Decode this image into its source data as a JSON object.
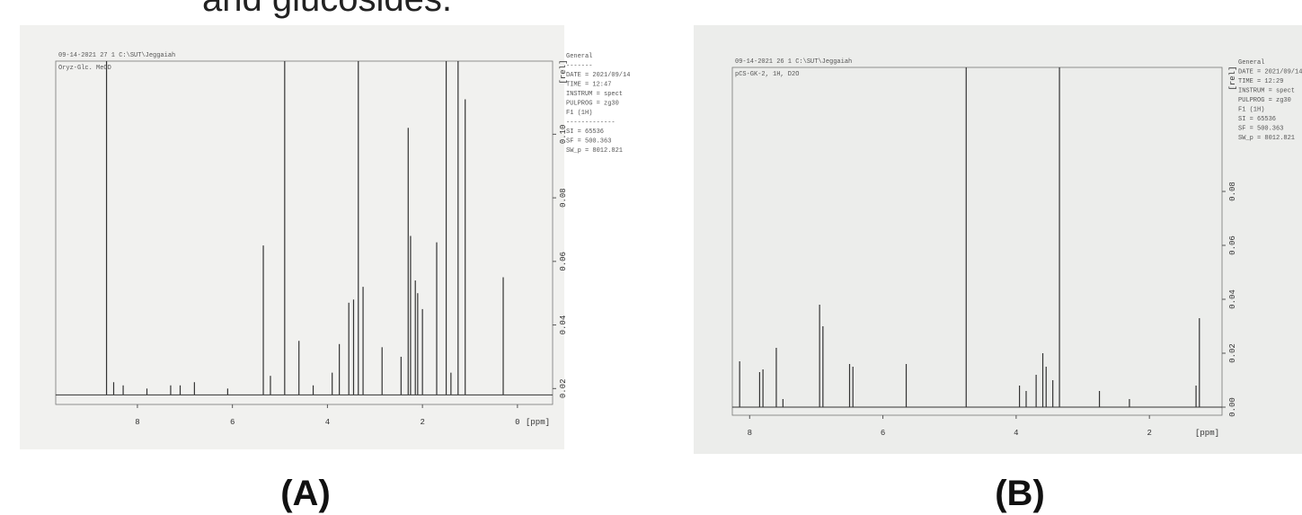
{
  "heading": "and glucosides.",
  "chart_data": [
    {
      "type": "stem",
      "panel_label": "(A)",
      "header": "09-14-2021  27  1  C:\\SUT\\Jeggaiah",
      "sample": "Oryz-Glc. MeOD",
      "params": [
        "General",
        "-------",
        "DATE = 2021/09/14",
        "TIME = 12:47",
        "INSTRUM = spect",
        "PULPROG = zg30",
        "F1 (1H)",
        "-------------",
        "SI = 65536",
        "SF = 500.363",
        "SW_p = 8012.821"
      ],
      "x_unit": "[ppm]",
      "y_unit": "[rel]",
      "color": "#333333",
      "baseline": 0.018,
      "x": [
        8.65,
        8.5,
        8.3,
        7.8,
        7.3,
        7.1,
        6.8,
        6.1,
        5.35,
        5.2,
        4.9,
        4.6,
        4.3,
        3.9,
        3.75,
        3.55,
        3.45,
        3.35,
        3.25,
        2.85,
        2.45,
        2.3,
        2.25,
        2.15,
        2.1,
        2.0,
        1.7,
        1.5,
        1.4,
        1.25,
        1.1,
        0.3
      ],
      "values": [
        0.123,
        0.022,
        0.021,
        0.02,
        0.021,
        0.021,
        0.022,
        0.02,
        0.065,
        0.024,
        0.123,
        0.035,
        0.021,
        0.025,
        0.034,
        0.047,
        0.048,
        0.123,
        0.052,
        0.033,
        0.03,
        0.102,
        0.068,
        0.054,
        0.05,
        0.045,
        0.066,
        0.123,
        0.025,
        0.123,
        0.111,
        0.055
      ],
      "xlim": [
        9.72,
        -0.74
      ],
      "ylim": [
        0.015,
        0.123
      ],
      "xticks": [
        8,
        6,
        4,
        2,
        0
      ],
      "yticks": [
        0.02,
        0.04,
        0.06,
        0.08,
        {
          "value": 0.1,
          "label": "0.10"
        }
      ]
    },
    {
      "type": "stem",
      "panel_label": "(B)",
      "header": "09-14-2021  26  1  C:\\SUT\\Jeggaiah",
      "sample": "pCS-GK-2, 1H, D2O",
      "params": [
        "General",
        "DATE = 2021/09/14",
        "TIME = 12:29",
        "INSTRUM = spect",
        "PULPROG = zg30",
        "F1 (1H)",
        "SI = 65536",
        "SF = 500.363",
        "SW_p = 8012.821"
      ],
      "x_unit": "[ppm]",
      "y_unit": "[rel]",
      "color": "#333333",
      "baseline": 0,
      "x": [
        8.15,
        7.85,
        7.8,
        7.6,
        7.5,
        6.95,
        6.9,
        6.5,
        6.45,
        5.65,
        4.75,
        3.95,
        3.85,
        3.7,
        3.6,
        3.55,
        3.45,
        3.35,
        2.75,
        2.3,
        1.3,
        1.25
      ],
      "values": [
        0.017,
        0.013,
        0.014,
        0.022,
        0.003,
        0.038,
        0.03,
        0.016,
        0.015,
        0.016,
        0.126,
        0.008,
        0.006,
        0.012,
        0.02,
        0.015,
        0.01,
        0.126,
        0.006,
        0.003,
        0.008,
        0.033
      ],
      "xlim": [
        8.26,
        0.91
      ],
      "ylim": [
        -0.003,
        0.126
      ],
      "xticks": [
        8,
        6,
        4,
        2
      ],
      "yticks": [
        {
          "value": 0,
          "label": "0.00"
        },
        0.02,
        0.04,
        0.06,
        0.08
      ]
    }
  ]
}
